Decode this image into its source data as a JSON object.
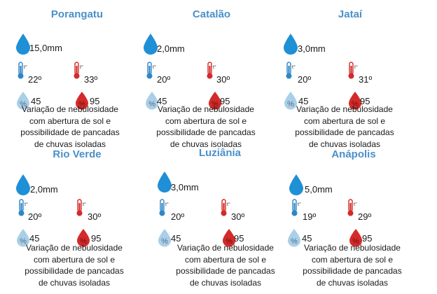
{
  "cities": [
    {
      "name": "Porangatu",
      "rain": "15,0mm",
      "tmin": "22º",
      "tmax": "33º",
      "hmin": "45",
      "hmax": "95",
      "desc": [
        "Variação de nebulosidade",
        "com abertura de sol e",
        "possibilidade  de pancadas",
        "de chuvas isoladas"
      ]
    },
    {
      "name": "Catalão",
      "rain": "2,0mm",
      "tmin": "20º",
      "tmax": "30º",
      "hmin": "45",
      "hmax": "95",
      "desc": [
        "Variação de nebulosidade",
        "com abertura de sol e",
        "possibilidade  de pancadas",
        "de chuvas isoladas"
      ]
    },
    {
      "name": "Jataí",
      "rain": "3,0mm",
      "tmin": "20º",
      "tmax": "31º",
      "hmin": "45",
      "hmax": "95",
      "desc": [
        "Variação de nebulosidade",
        "com abertura de sol e",
        "possibilidade  de pancadas",
        "de chuvas isoladas"
      ]
    },
    {
      "name": "Rio Verde",
      "rain": "2,0mm",
      "tmin": "20º",
      "tmax": "30º",
      "hmin": "45",
      "hmax": "95",
      "desc": [
        "Variação de nebulosidade",
        "com abertura de sol e",
        "possibilidade  de pancadas",
        "de chuvas isoladas"
      ]
    },
    {
      "name": "Luziânia",
      "rain": "3,0mm",
      "tmin": "20º",
      "tmax": "30º",
      "hmin": "45",
      "hmax": "95",
      "desc": [
        "Variação de nebulosidade",
        "com abertura de sol e",
        "possibilidade  de pancadas",
        "de chuvas isoladas"
      ]
    },
    {
      "name": "Anápolis",
      "rain": "5,0mm",
      "tmin": "19º",
      "tmax": "29º",
      "hmin": "45",
      "hmax": "95",
      "desc": [
        "Variação de nebulosidade",
        "com abertura de sol e",
        "possibilidade  de pancadas",
        "de chuvas isoladas"
      ]
    }
  ],
  "thermo_label": "t°",
  "humidity_symbol": "%",
  "colors": {
    "title": "#4a90c8",
    "rain_drop": "#1f8fd6",
    "cold": "#2f86c8",
    "hot": "#d42a2a",
    "humidity_low": "#a9cfe9",
    "humidity_high": "#d42a2a"
  },
  "icons": {
    "rain": "rain-drop-icon",
    "tmin": "thermometer-cold-icon",
    "tmax": "thermometer-hot-icon",
    "hmin": "humidity-low-icon",
    "hmax": "humidity-high-icon"
  }
}
